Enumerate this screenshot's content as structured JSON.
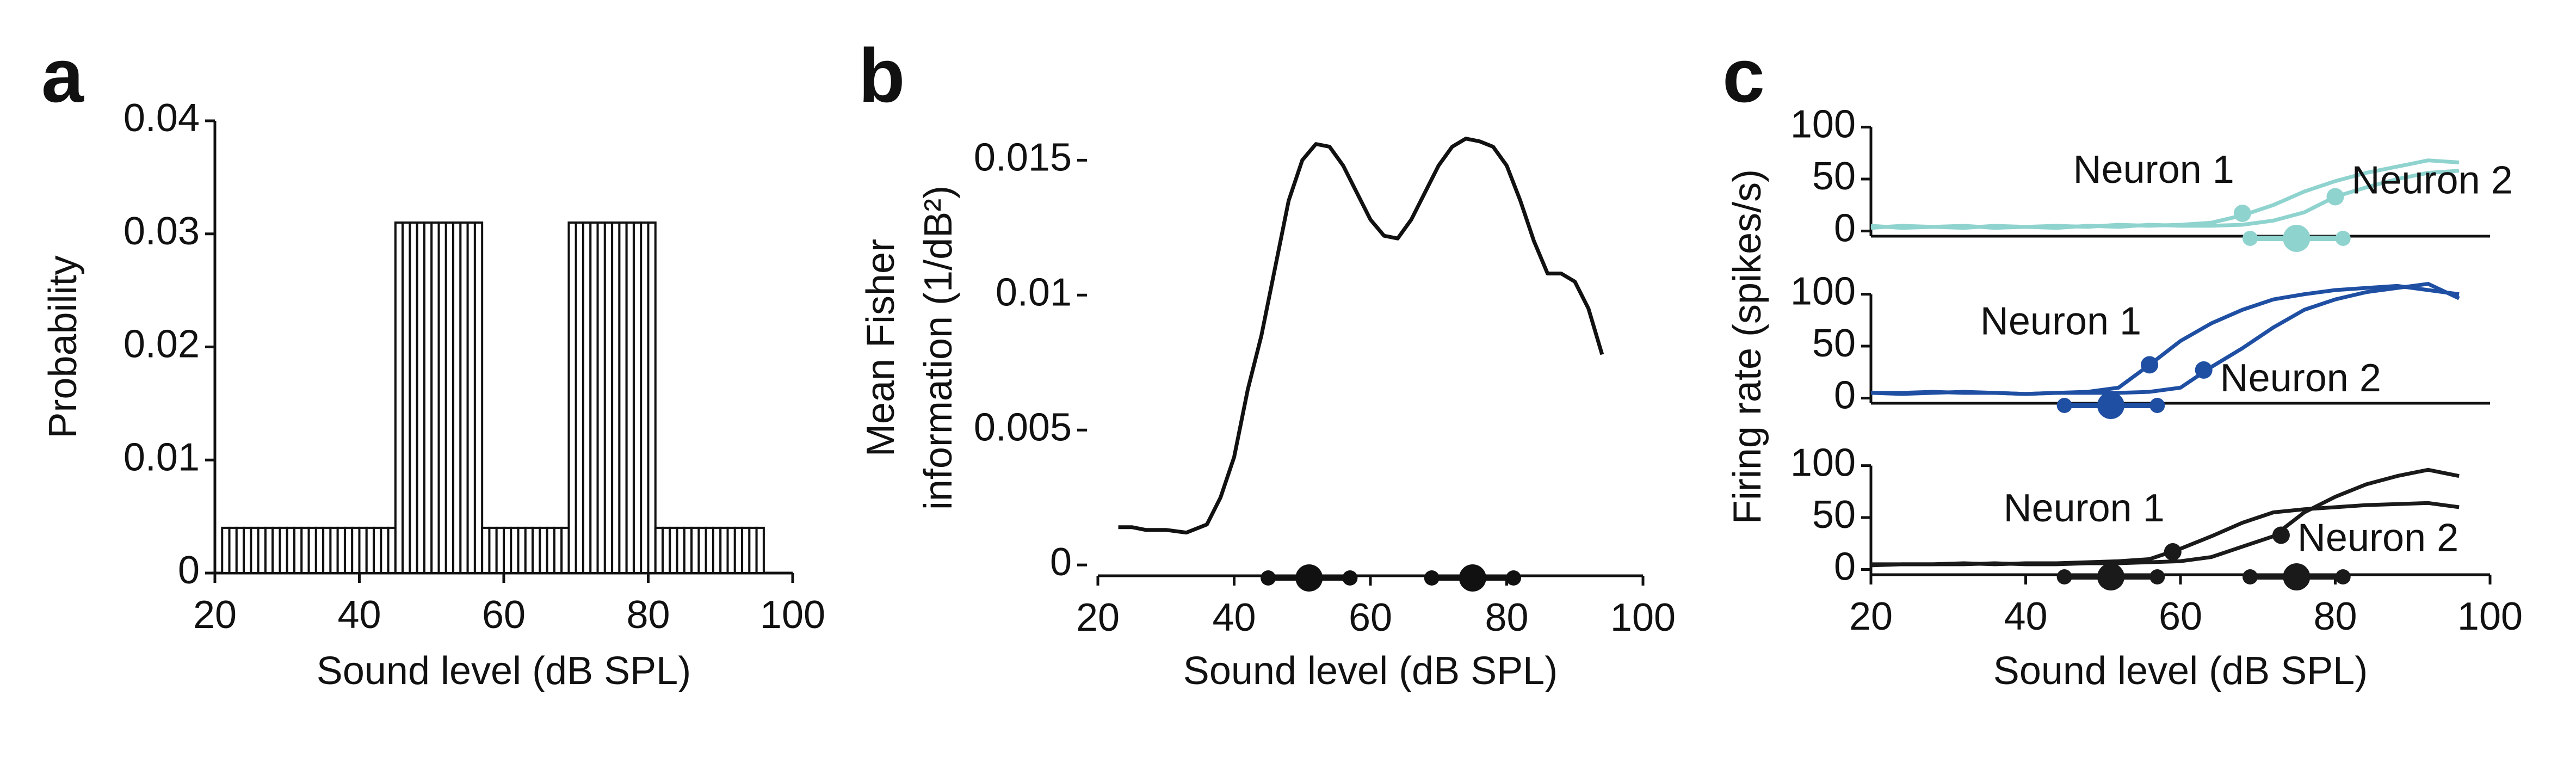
{
  "chart_data": [
    {
      "type": "histogram",
      "panel": "a",
      "ylabel": "Probability",
      "xlabel": "Sound level (dB SPL)",
      "bins": [
        21,
        22,
        23,
        24,
        25,
        26,
        27,
        28,
        29,
        30,
        31,
        32,
        33,
        34,
        35,
        36,
        37,
        38,
        39,
        40,
        41,
        42,
        43,
        44,
        45,
        46,
        47,
        48,
        49,
        50,
        51,
        52,
        53,
        54,
        55,
        56,
        57,
        58,
        59,
        60,
        61,
        62,
        63,
        64,
        65,
        66,
        67,
        68,
        69,
        70,
        71,
        72,
        73,
        74,
        75,
        76,
        77,
        78,
        79,
        80,
        81,
        82,
        83,
        84,
        85,
        86,
        87,
        88,
        89,
        90,
        91,
        92,
        93,
        94,
        95,
        96
      ],
      "values": [
        0.004,
        0.004,
        0.004,
        0.004,
        0.004,
        0.004,
        0.004,
        0.004,
        0.004,
        0.004,
        0.004,
        0.004,
        0.004,
        0.004,
        0.004,
        0.004,
        0.004,
        0.004,
        0.004,
        0.004,
        0.004,
        0.004,
        0.004,
        0.004,
        0.031,
        0.031,
        0.031,
        0.031,
        0.031,
        0.031,
        0.031,
        0.031,
        0.031,
        0.031,
        0.031,
        0.031,
        0.004,
        0.004,
        0.004,
        0.004,
        0.004,
        0.004,
        0.004,
        0.004,
        0.004,
        0.004,
        0.004,
        0.004,
        0.031,
        0.031,
        0.031,
        0.031,
        0.031,
        0.031,
        0.031,
        0.031,
        0.031,
        0.031,
        0.031,
        0.031,
        0.004,
        0.004,
        0.004,
        0.004,
        0.004,
        0.004,
        0.004,
        0.004,
        0.004,
        0.004,
        0.004,
        0.004,
        0.004,
        0.004,
        0.004
      ],
      "color": "#111111",
      "xlim": [
        20,
        100
      ],
      "xticks": [
        20,
        40,
        60,
        80,
        100
      ],
      "ylim": [
        0,
        0.04
      ],
      "yticks": [
        0,
        0.01,
        0.02,
        0.03,
        0.04
      ]
    },
    {
      "type": "line",
      "panel": "b",
      "ylabel": [
        "Mean Fisher",
        "information (1/dB²)"
      ],
      "xlabel": "Sound level (dB SPL)",
      "x": [
        23,
        25,
        27,
        30,
        33,
        36,
        38,
        40,
        42,
        44,
        46,
        48,
        50,
        52,
        54,
        56,
        58,
        60,
        62,
        64,
        66,
        68,
        70,
        72,
        74,
        76,
        78,
        80,
        82,
        84,
        86,
        88,
        90,
        92,
        94
      ],
      "values": [
        0.0014,
        0.0014,
        0.0013,
        0.0013,
        0.0012,
        0.0015,
        0.0025,
        0.004,
        0.0065,
        0.0085,
        0.011,
        0.0135,
        0.015,
        0.0156,
        0.0155,
        0.0148,
        0.0138,
        0.0128,
        0.0122,
        0.0121,
        0.0128,
        0.0138,
        0.0148,
        0.0155,
        0.0158,
        0.0157,
        0.0155,
        0.0148,
        0.0135,
        0.012,
        0.0108,
        0.0108,
        0.0105,
        0.0095,
        0.0078
      ],
      "color": "#111111",
      "xlim": [
        20,
        100
      ],
      "xticks": [
        20,
        40,
        60,
        80,
        100
      ],
      "ylim": [
        -0.0004,
        0.0165
      ],
      "yticks": [
        0,
        0.005,
        0.01,
        0.015
      ],
      "intervals": {
        "color": "#111111",
        "items": [
          {
            "low": 45,
            "center": 51,
            "high": 57
          },
          {
            "low": 69,
            "center": 75,
            "high": 81
          }
        ]
      }
    },
    {
      "type": "line",
      "panel": "c",
      "x": [
        20,
        24,
        28,
        32,
        36,
        40,
        44,
        48,
        52,
        56,
        60,
        64,
        68,
        72,
        76,
        80,
        84,
        88,
        92,
        96
      ],
      "series": [
        {
          "name": "Neuron 1",
          "color": "#8fd3cf",
          "values": [
            5,
            3,
            4,
            5,
            3,
            4,
            5,
            4,
            6,
            5,
            6,
            8,
            15,
            25,
            38,
            48,
            56,
            62,
            68,
            66
          ],
          "point": [
            68,
            17
          ]
        },
        {
          "name": "Neuron 2",
          "color": "#8fd3cf",
          "values": [
            3,
            5,
            4,
            3,
            5,
            4,
            3,
            5,
            4,
            6,
            5,
            5,
            6,
            10,
            18,
            33,
            42,
            50,
            56,
            58
          ],
          "point": [
            80,
            33
          ]
        }
      ],
      "xlim": [
        20,
        100
      ],
      "ylim": [
        -5,
        115
      ],
      "yticks": [
        0,
        50,
        100
      ],
      "intervals": {
        "color": "#8fd3cf",
        "items": [
          {
            "low": 69,
            "center": 75,
            "high": 81
          }
        ]
      }
    },
    {
      "type": "line",
      "ylabel": "Firing rate (spikes/s)",
      "x": [
        20,
        24,
        28,
        32,
        36,
        40,
        44,
        48,
        52,
        56,
        60,
        64,
        68,
        72,
        76,
        80,
        84,
        88,
        92,
        96
      ],
      "series": [
        {
          "name": "Neuron 1",
          "color": "#1f4fa3",
          "values": [
            5,
            5,
            6,
            5,
            5,
            4,
            5,
            6,
            10,
            32,
            55,
            72,
            85,
            95,
            100,
            104,
            106,
            108,
            104,
            100
          ],
          "point": [
            56,
            32
          ]
        },
        {
          "name": "Neuron 2",
          "color": "#1f4fa3",
          "values": [
            5,
            4,
            5,
            6,
            5,
            4,
            5,
            5,
            5,
            6,
            10,
            30,
            48,
            68,
            85,
            95,
            102,
            106,
            110,
            96
          ],
          "point": [
            63,
            27
          ]
        }
      ],
      "xlim": [
        20,
        100
      ],
      "ylim": [
        -5,
        115
      ],
      "yticks": [
        0,
        50,
        100
      ],
      "intervals": {
        "color": "#1f4fa3",
        "items": [
          {
            "low": 45,
            "center": 51,
            "high": 57
          }
        ]
      }
    },
    {
      "type": "line",
      "xlabel": "Sound level (dB SPL)",
      "x": [
        20,
        24,
        28,
        32,
        36,
        40,
        44,
        48,
        52,
        56,
        60,
        64,
        68,
        72,
        76,
        80,
        84,
        88,
        92,
        96
      ],
      "series": [
        {
          "name": "Neuron 1",
          "color": "#1a1a1a",
          "values": [
            5,
            5,
            5,
            6,
            5,
            6,
            6,
            7,
            8,
            10,
            20,
            32,
            45,
            55,
            58,
            60,
            62,
            63,
            64,
            60
          ],
          "point": [
            59,
            17
          ]
        },
        {
          "name": "Neuron 2",
          "color": "#1a1a1a",
          "values": [
            4,
            5,
            5,
            5,
            6,
            5,
            5,
            6,
            6,
            7,
            8,
            12,
            22,
            32,
            55,
            70,
            82,
            90,
            96,
            90
          ],
          "point": [
            73,
            33
          ]
        }
      ],
      "xlim": [
        20,
        100
      ],
      "xticks": [
        20,
        40,
        60,
        80,
        100
      ],
      "ylim": [
        -5,
        115
      ],
      "yticks": [
        0,
        50,
        100
      ],
      "intervals": {
        "color": "#1a1a1a",
        "items": [
          {
            "low": 45,
            "center": 51,
            "high": 57
          },
          {
            "low": 69,
            "center": 75,
            "high": 81
          }
        ]
      }
    }
  ]
}
